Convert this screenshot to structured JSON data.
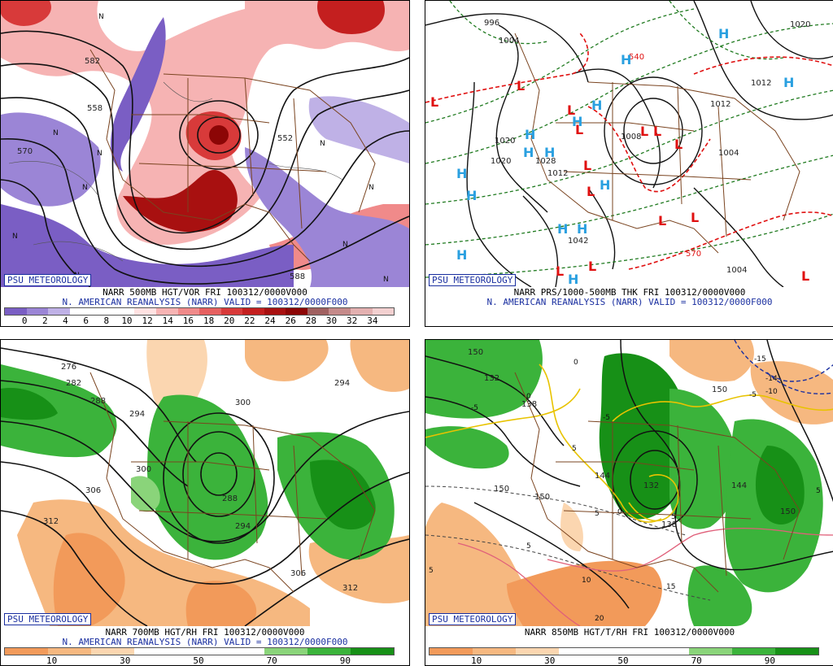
{
  "panels": [
    {
      "badge": "PSU METEOROLOGY",
      "caption": "NARR 500MB HGT/VOR FRI 100312/0000V000",
      "subcaption": "N. AMERICAN REANALYSIS (NARR) VALID = 100312/0000F000",
      "colorbar_colors": [
        "#7a5ec4",
        "#9b85d6",
        "#bfb1e6",
        "#ffffff",
        "#ffffff",
        "#ffffff",
        "#ffe2e2",
        "#f7b3b3",
        "#f08a8a",
        "#e66060",
        "#d83a3a",
        "#c41f1f",
        "#a81010",
        "#8c0606",
        "#a06060",
        "#c58a8a",
        "#e3b0b0",
        "#f2d0d0"
      ],
      "colorbar_ticks": [
        "0",
        "2",
        "4",
        "6",
        "8",
        "10",
        "12",
        "14",
        "16",
        "18",
        "20",
        "22",
        "24",
        "26",
        "28",
        "30",
        "32",
        "34"
      ],
      "contour_labels": [
        "582",
        "558",
        "570",
        "552",
        "588"
      ],
      "vort_markers": [
        "N",
        "N",
        "N",
        "N",
        "N",
        "N",
        "N",
        "N",
        "N",
        "N"
      ]
    },
    {
      "badge": "PSU METEOROLOGY",
      "caption": "NARR PRS/1000-500MB THK FRI 100312/0000V000",
      "subcaption": "N. AMERICAN REANALYSIS (NARR) VALID = 100312/0000F000",
      "pressure_labels": [
        "996",
        "1004",
        "1020",
        "1028",
        "1012",
        "1008",
        "1004",
        "1020",
        "1042",
        "1012",
        "1004",
        "1020",
        "1012"
      ],
      "thickness_labels": [
        "540",
        "570"
      ],
      "high_symbol": "H",
      "low_symbol": "L"
    },
    {
      "badge": "PSU METEOROLOGY",
      "caption": "NARR 700MB HGT/RH FRI 100312/0000V000",
      "subcaption": "N. AMERICAN REANALYSIS (NARR) VALID = 100312/0000F000",
      "colorbar_colors": [
        "#f29a5a",
        "#f6b880",
        "#fbd6b0",
        "#ffffff",
        "#ffffff",
        "#ffffff",
        "#8ad47a",
        "#3bb33b",
        "#179017"
      ],
      "colorbar_ticks": [
        "10",
        "30",
        "50",
        "70",
        "90"
      ],
      "contour_labels": [
        "276",
        "282",
        "288",
        "294",
        "300",
        "306",
        "312",
        "300",
        "288",
        "294",
        "306",
        "312",
        "294"
      ]
    },
    {
      "badge": "PSU METEOROLOGY",
      "caption": "NARR 850MB HGT/T/RH FRI 100312/0000V000",
      "subcaption": "",
      "colorbar_colors": [
        "#f29a5a",
        "#f6b880",
        "#fbd6b0",
        "#ffffff",
        "#ffffff",
        "#ffffff",
        "#8ad47a",
        "#3bb33b",
        "#179017"
      ],
      "colorbar_ticks": [
        "10",
        "30",
        "50",
        "70",
        "90"
      ],
      "height_labels": [
        "132",
        "138",
        "150",
        "150",
        "144",
        "132",
        "138",
        "144",
        "150",
        "150",
        "150"
      ],
      "temp_labels": [
        "-15",
        "-14",
        "-10",
        "-5",
        "-5",
        "-5",
        "0",
        "0",
        "0",
        "5",
        "5",
        "5",
        "5",
        "5",
        "5",
        "10",
        "15",
        "20"
      ]
    }
  ]
}
